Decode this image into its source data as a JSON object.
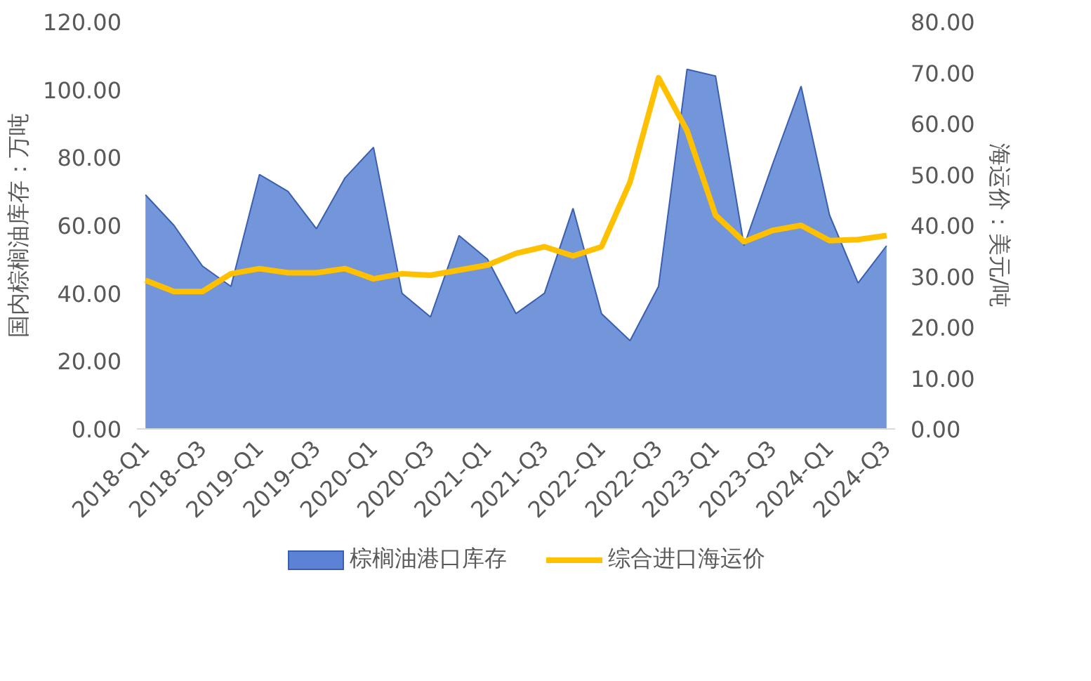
{
  "chart_data": {
    "type": "area",
    "ylabel": "国内棕榈油库存：万吨",
    "y2label": "海运价：美元/吨",
    "categories": [
      "2018-Q1",
      null,
      "2018-Q3",
      null,
      "2019-Q1",
      null,
      "2019-Q3",
      null,
      "2020-Q1",
      null,
      "2020-Q3",
      null,
      "2021-Q1",
      null,
      "2021-Q3",
      null,
      "2022-Q1",
      null,
      "2022-Q3",
      null,
      "2023-Q1",
      null,
      "2023-Q3",
      null,
      "2024-Q1",
      null,
      "2024-Q3"
    ],
    "series": [
      {
        "name": "棕榈油港口库存",
        "color": "#5b82d4",
        "values": [
          69,
          60,
          48,
          42,
          75,
          70,
          59,
          74,
          83,
          40,
          33,
          57,
          50,
          34,
          40,
          65,
          34,
          26,
          42,
          106,
          104,
          54,
          78,
          101,
          63,
          43,
          54
        ]
      },
      {
        "name": "综合进口海运价",
        "type": "line",
        "axis": "y2",
        "color": "#ffc000",
        "values": [
          29.2,
          27,
          27,
          30.5,
          31.5,
          30.7,
          30.7,
          31.5,
          29.5,
          30.5,
          30.2,
          31.2,
          32.2,
          34.5,
          35.8,
          34,
          35.8,
          48.5,
          69,
          58.6,
          42,
          36.8,
          39,
          40,
          37,
          37.2,
          38
        ]
      }
    ],
    "ylim": [
      0,
      120
    ],
    "yticks": [
      {
        "value": 0,
        "label": "0.00"
      },
      {
        "value": 20,
        "label": "20.00"
      },
      {
        "value": 40,
        "label": "40.00"
      },
      {
        "value": 60,
        "label": "60.00"
      },
      {
        "value": 80,
        "label": "80.00"
      },
      {
        "value": 100,
        "label": "100.00"
      },
      {
        "value": 120,
        "label": "120.00"
      }
    ],
    "y2lim": [
      0,
      80
    ],
    "y2ticks": [
      {
        "value": 0,
        "label": "0.00"
      },
      {
        "value": 10,
        "label": "10.00"
      },
      {
        "value": 20,
        "label": "20.00"
      },
      {
        "value": 30,
        "label": "30.00"
      },
      {
        "value": 40,
        "label": "40.00"
      },
      {
        "value": 50,
        "label": "50.00"
      },
      {
        "value": 60,
        "label": "60.00"
      },
      {
        "value": 70,
        "label": "70.00"
      },
      {
        "value": 80,
        "label": "80.00"
      }
    ],
    "legend": "bottom",
    "grid": false,
    "marker": "none",
    "line_style": "solid"
  }
}
